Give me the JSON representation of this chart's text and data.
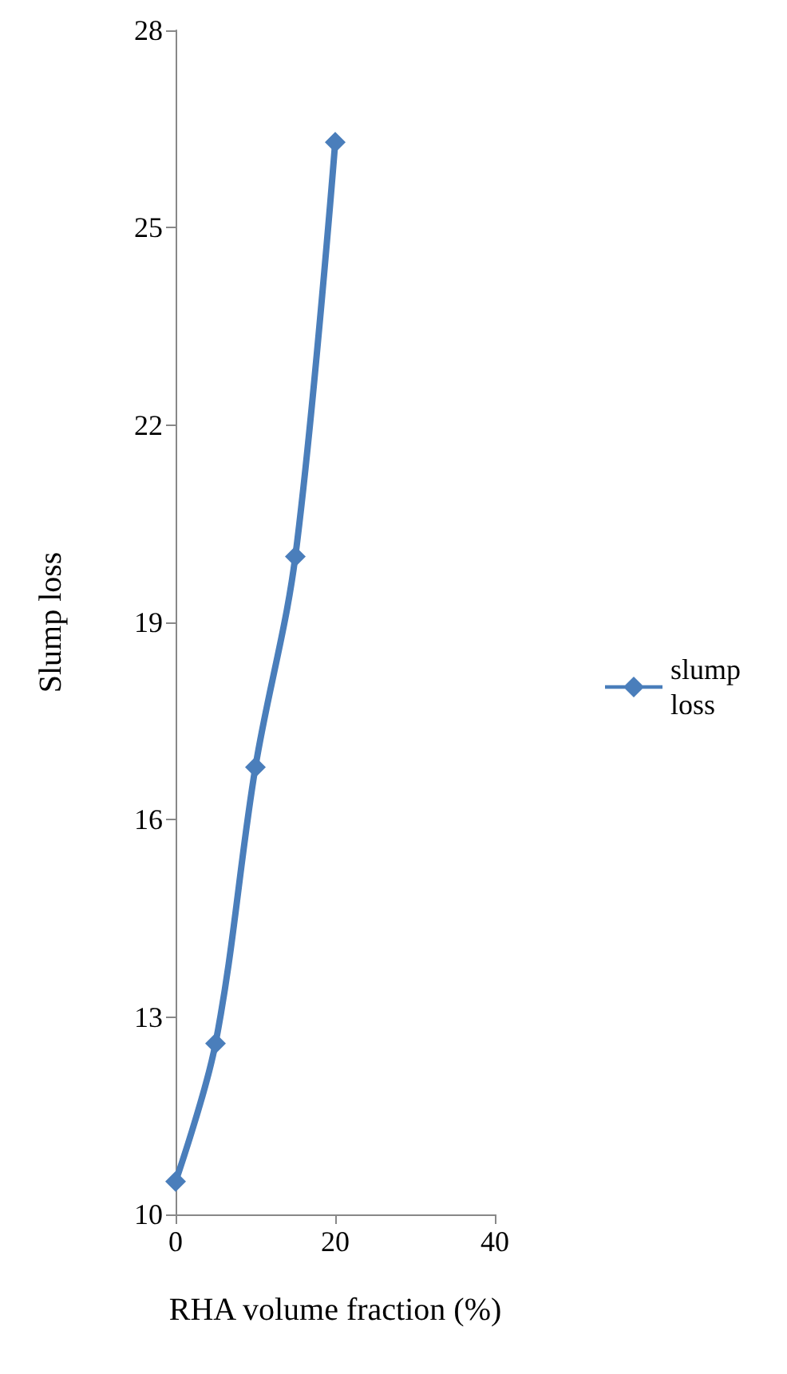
{
  "chart_data": {
    "type": "line",
    "xlabel": "RHA volume fraction (%)",
    "ylabel": "Slump loss",
    "x": [
      0,
      5,
      10,
      15,
      20
    ],
    "series": [
      {
        "name": "slump loss",
        "color": "#4a7ebb",
        "values": [
          10.5,
          12.6,
          16.8,
          20,
          26.3
        ]
      }
    ],
    "xlim": [
      0,
      40
    ],
    "xticks": [
      0,
      20,
      40
    ],
    "ylim": [
      10,
      28
    ],
    "yticks": [
      10,
      13,
      16,
      19,
      22,
      25,
      28
    ],
    "marker": "diamond",
    "line_style": "solid",
    "legend": "right",
    "grid": false
  }
}
